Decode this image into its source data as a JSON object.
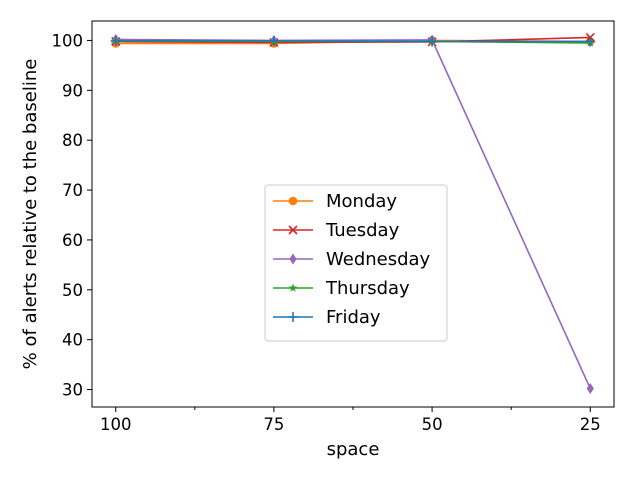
{
  "chart_data": {
    "type": "line",
    "title": "",
    "xlabel": "space",
    "ylabel": "% of alerts relative to the baseline",
    "x": [
      100,
      75,
      50,
      25
    ],
    "x_tick_labels": [
      "100",
      "75",
      "50",
      "25"
    ],
    "x_axis_inverted": true,
    "xlim": [
      103.75,
      21.25
    ],
    "ylim": [
      26.5,
      103.9
    ],
    "yticks": [
      30,
      40,
      50,
      60,
      70,
      80,
      90,
      100
    ],
    "grid": false,
    "legend_position": "center",
    "series": [
      {
        "name": "Monday",
        "color": "#ff7f0e",
        "marker": "circle",
        "values": [
          99.4,
          99.4,
          100.0,
          99.8
        ]
      },
      {
        "name": "Tuesday",
        "color": "#d62728",
        "marker": "x",
        "values": [
          99.8,
          99.6,
          99.7,
          100.6
        ]
      },
      {
        "name": "Wednesday",
        "color": "#9467bd",
        "marker": "diamond",
        "values": [
          100.2,
          100.0,
          100.1,
          30.2
        ]
      },
      {
        "name": "Thursday",
        "color": "#2ca02c",
        "marker": "star",
        "values": [
          99.9,
          99.8,
          99.8,
          99.5
        ]
      },
      {
        "name": "Friday",
        "color": "#1f77b4",
        "marker": "plus",
        "values": [
          99.9,
          99.9,
          99.8,
          99.8
        ]
      }
    ]
  }
}
